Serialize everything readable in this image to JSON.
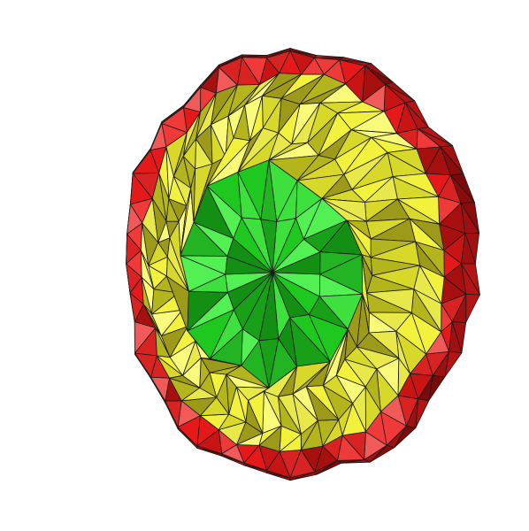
{
  "scene": {
    "kind": "triangulated-mesh-rendering",
    "background": "#ffffff",
    "edge_color": "#1a1a1a",
    "regions": [
      {
        "name": "outer-rim",
        "palette": [
          "#e51919",
          "#c81414",
          "#f03a3a",
          "#a81010",
          "#d92222",
          "#f25a5a"
        ]
      },
      {
        "name": "middle-band",
        "palette": [
          "#f2f23c",
          "#d8d82a",
          "#b4b41c",
          "#fafa7a",
          "#e8e84a",
          "#9c9a18"
        ]
      },
      {
        "name": "inner-core",
        "palette": [
          "#1ec81e",
          "#18a018",
          "#3ee03e",
          "#22b422",
          "#139013",
          "#52f052"
        ]
      }
    ]
  }
}
